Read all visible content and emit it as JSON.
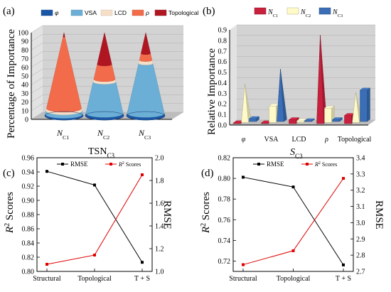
{
  "colors": {
    "phi": "#1a56a5",
    "vsa": "#6baed6",
    "lcd": "#f5dfc8",
    "rho": "#f26b4a",
    "topo": "#b01622",
    "nc1": "#c8203d",
    "nc2": "#fffac8",
    "nc3": "#3a6fb7",
    "rmse": "#000000",
    "r2": "#e00000"
  },
  "chart_data": [
    {
      "panel": "(a)",
      "type": "stacked-cone",
      "categories": [
        "N",
        "N",
        "N"
      ],
      "category_subscripts": [
        "C1",
        "C2",
        "C3"
      ],
      "xlabel": "TSN",
      "xlabel_sub": "C3",
      "ylabel": "Percentage of Importance",
      "ylim": [
        0,
        100
      ],
      "yticks": [
        "0",
        "10",
        "20",
        "30",
        "40",
        "50",
        "60",
        "70",
        "80",
        "90",
        "100"
      ],
      "legend": [
        "φ",
        "VSA",
        "LCD",
        "ρ",
        "Topological"
      ],
      "series": [
        {
          "name": "φ",
          "values": [
            2,
            3,
            3
          ]
        },
        {
          "name": "VSA",
          "values": [
            4,
            38,
            60
          ]
        },
        {
          "name": "LCD",
          "values": [
            3,
            3,
            4
          ]
        },
        {
          "name": "ρ",
          "values": [
            86,
            18,
            8
          ]
        },
        {
          "name": "Topological",
          "values": [
            5,
            38,
            25
          ]
        }
      ]
    },
    {
      "panel": "(b)",
      "type": "bar-3d",
      "categories": [
        "φ",
        "VSA",
        "LCD",
        "ρ",
        "Topological"
      ],
      "xlabel": "S",
      "xlabel_sub": "C3",
      "ylabel": "Relative Importance",
      "ylim": [
        0,
        0.9
      ],
      "yticks": [
        "0.0",
        "0.1",
        "0.2",
        "0.3",
        "0.4",
        "0.5",
        "0.6",
        "0.7",
        "0.8",
        "0.9"
      ],
      "legend": [
        "N",
        "N",
        "N"
      ],
      "legend_subscripts": [
        "C1",
        "C2",
        "C3"
      ],
      "series": [
        {
          "name": "NC1",
          "values": [
            0.02,
            0.02,
            0.05,
            0.85,
            0.09
          ],
          "shape": [
            "bar",
            "bar",
            "bar",
            "cone",
            "bar"
          ]
        },
        {
          "name": "NC2",
          "values": [
            0.39,
            0.18,
            0.04,
            0.16,
            0.31
          ],
          "shape": [
            "cone",
            "bar",
            "bar",
            "bar",
            "cone"
          ]
        },
        {
          "name": "NC3",
          "values": [
            0.06,
            0.53,
            0.04,
            0.05,
            0.33
          ],
          "shape": [
            "bar",
            "cone",
            "bar",
            "bar",
            "bar"
          ]
        }
      ]
    },
    {
      "panel": "(c)",
      "type": "line",
      "categories": [
        "Structural",
        "Topological",
        "T + S"
      ],
      "ylabel_left": "R",
      "ylabel_left_sup": "2",
      "ylabel_left_suffix": " Scores",
      "ylabel_right": "RMSE",
      "ylim_left": [
        0.8,
        0.96
      ],
      "yticks_left": [
        "0.80",
        "0.82",
        "0.84",
        "0.86",
        "0.88",
        "0.90",
        "0.92",
        "0.94",
        "0.96"
      ],
      "ylim_right": [
        1.0,
        2.0
      ],
      "yticks_right": [
        "1.0",
        "1.2",
        "1.4",
        "1.6",
        "1.8",
        "2.0"
      ],
      "legend_rmse": "RMSE",
      "legend_r2": "R",
      "legend_r2_sup": "2",
      "legend_r2_suffix": " Scores",
      "series": [
        {
          "name": "RMSE",
          "axis": "right",
          "values": [
            1.88,
            1.76,
            1.08
          ]
        },
        {
          "name": "R2 Scores",
          "axis": "left",
          "values": [
            0.81,
            0.823,
            0.936
          ]
        }
      ]
    },
    {
      "panel": "(d)",
      "type": "line",
      "categories": [
        "Structural",
        "Topological",
        "T + S"
      ],
      "ylabel_left": "R",
      "ylabel_left_sup": "2",
      "ylabel_left_suffix": " Scores",
      "ylabel_right": "RMSE",
      "ylim_left": [
        0.71,
        0.82
      ],
      "yticks_left": [
        "0.72",
        "0.74",
        "0.76",
        "0.78",
        "0.80",
        "0.82"
      ],
      "ylim_right": [
        2.7,
        3.4
      ],
      "yticks_right": [
        "2.7",
        "2.8",
        "2.9",
        "3.0",
        "3.1",
        "3.2",
        "3.3",
        "3.4"
      ],
      "legend_rmse": "RMSE",
      "legend_r2": "R",
      "legend_r2_sup": "2",
      "legend_r2_suffix": " Scores",
      "series": [
        {
          "name": "RMSE",
          "axis": "right",
          "values": [
            3.28,
            3.22,
            2.74
          ]
        },
        {
          "name": "R2 Scores",
          "axis": "left",
          "values": [
            0.7165,
            0.73,
            0.8
          ]
        }
      ]
    }
  ]
}
